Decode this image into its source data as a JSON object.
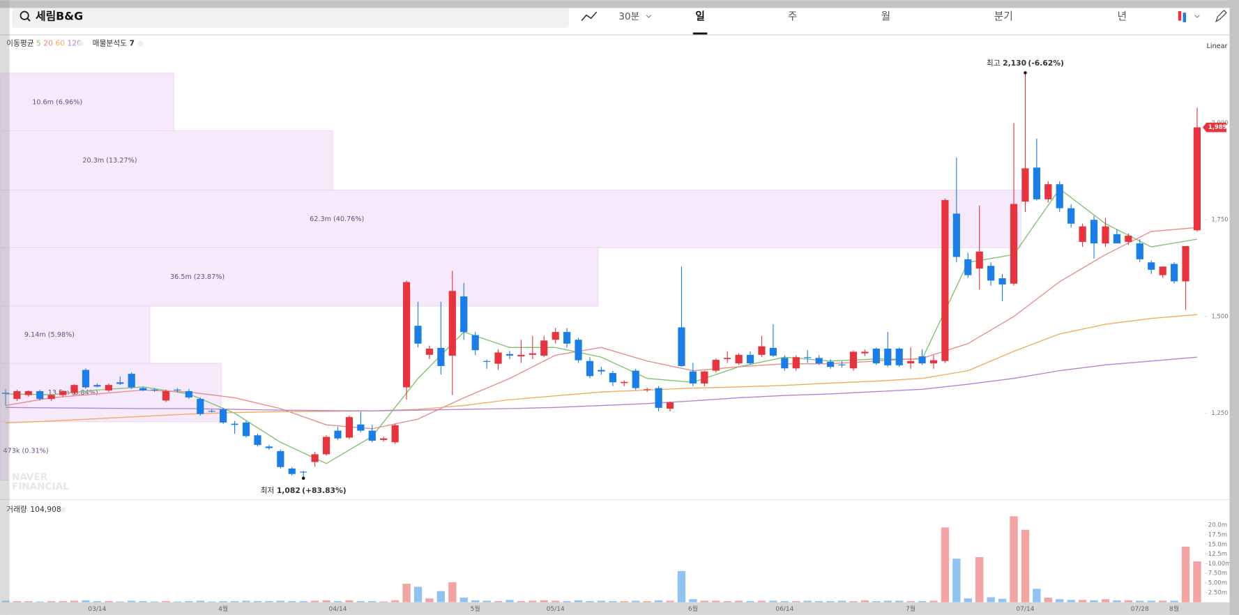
{
  "toolbar": {
    "search": "세림B&G",
    "interval": "30분",
    "tabs": [
      "일",
      "주",
      "월",
      "분기",
      "년"
    ],
    "active_tab": 0
  },
  "chart_data": [
    {
      "type": "candlestick",
      "legend_title": "이동평균",
      "scale_label": "Linear",
      "up_color": "#e8323c",
      "down_color": "#1a7ee8",
      "categories": [
        null,
        null,
        null,
        null,
        null,
        null,
        null,
        null,
        "03/14",
        null,
        null,
        null,
        null,
        null,
        null,
        null,
        null,
        null,
        null,
        "4월",
        null,
        null,
        null,
        null,
        null,
        null,
        null,
        null,
        null,
        "04/14",
        null,
        null,
        null,
        null,
        null,
        null,
        null,
        null,
        null,
        null,
        null,
        "5월",
        null,
        null,
        null,
        null,
        null,
        null,
        "05/14",
        null,
        null,
        null,
        null,
        null,
        null,
        null,
        null,
        null,
        null,
        null,
        "6월",
        null,
        null,
        null,
        null,
        null,
        null,
        null,
        "06/14",
        null,
        null,
        null,
        null,
        null,
        null,
        null,
        null,
        null,
        null,
        "7월",
        null,
        null,
        null,
        null,
        null,
        null,
        null,
        null,
        null,
        "07/14",
        null,
        null,
        null,
        null,
        null,
        null,
        null,
        null,
        null,
        "07/28",
        null,
        null,
        "8월",
        null,
        null
      ],
      "ohlc": [
        [
          1303,
          1312,
          1270,
          1300
        ],
        [
          1287,
          1311,
          1282,
          1307
        ],
        [
          1297,
          1309,
          1293,
          1307
        ],
        [
          1307,
          1311,
          1283,
          1287
        ],
        [
          1287,
          1299,
          1282,
          1297
        ],
        [
          1297,
          1309,
          1292,
          1307
        ],
        [
          1303,
          1325,
          1297,
          1323
        ],
        [
          1362,
          1366,
          1313,
          1317
        ],
        [
          1323,
          1327,
          1317,
          1319
        ],
        [
          1309,
          1327,
          1305,
          1323
        ],
        [
          1330,
          1345,
          1323,
          1326
        ],
        [
          1352,
          1356,
          1313,
          1317
        ],
        [
          1315,
          1319,
          1307,
          1309
        ],
        [
          1311,
          1315,
          1305,
          1309
        ],
        [
          1283,
          1311,
          1279,
          1307
        ],
        [
          1311,
          1315,
          1305,
          1309
        ],
        [
          1307,
          1313,
          1287,
          1291
        ],
        [
          1287,
          1291,
          1244,
          1248
        ],
        [
          1256,
          1260,
          1252,
          1254
        ],
        [
          1260,
          1264,
          1222,
          1226
        ],
        [
          1223,
          1230,
          1197,
          1220
        ],
        [
          1226,
          1230,
          1187,
          1191
        ],
        [
          1193,
          1197,
          1164,
          1168
        ],
        [
          1164,
          1168,
          1156,
          1160
        ],
        [
          1152,
          1156,
          1107,
          1111
        ],
        [
          1107,
          1111,
          1089,
          1093
        ],
        [
          1099,
          1101,
          1082,
          1097
        ],
        [
          1124,
          1150,
          1112,
          1144
        ],
        [
          1144,
          1193,
          1140,
          1189
        ],
        [
          1205,
          1215,
          1181,
          1185
        ],
        [
          1187,
          1244,
          1183,
          1240
        ],
        [
          1221,
          1254,
          1201,
          1205
        ],
        [
          1205,
          1220,
          1175,
          1179
        ],
        [
          1181,
          1189,
          1177,
          1185
        ],
        [
          1175,
          1223,
          1171,
          1219
        ],
        [
          1317,
          1593,
          1285,
          1589
        ],
        [
          1476,
          1538,
          1420,
          1430
        ],
        [
          1401,
          1425,
          1390,
          1417
        ],
        [
          1419,
          1538,
          1350,
          1372
        ],
        [
          1399,
          1618,
          1297,
          1566
        ],
        [
          1552,
          1587,
          1440,
          1460
        ],
        [
          1452,
          1460,
          1400,
          1413
        ],
        [
          1385,
          1389,
          1365,
          1383
        ],
        [
          1378,
          1415,
          1362,
          1407
        ],
        [
          1403,
          1411,
          1390,
          1399
        ],
        [
          1397,
          1440,
          1380,
          1401
        ],
        [
          1401,
          1450,
          1390,
          1405
        ],
        [
          1399,
          1450,
          1395,
          1438
        ],
        [
          1440,
          1470,
          1430,
          1460
        ],
        [
          1460,
          1470,
          1420,
          1430
        ],
        [
          1440,
          1445,
          1380,
          1387
        ],
        [
          1385,
          1395,
          1340,
          1346
        ],
        [
          1362,
          1370,
          1350,
          1358
        ],
        [
          1354,
          1360,
          1320,
          1330
        ],
        [
          1328,
          1335,
          1320,
          1331
        ],
        [
          1360,
          1365,
          1310,
          1315
        ],
        [
          1310,
          1316,
          1305,
          1312
        ],
        [
          1315,
          1320,
          1255,
          1264
        ],
        [
          1262,
          1280,
          1255,
          1278
        ],
        [
          1472,
          1629,
          1370,
          1372
        ],
        [
          1358,
          1380,
          1320,
          1327
        ],
        [
          1327,
          1360,
          1320,
          1358
        ],
        [
          1360,
          1392,
          1355,
          1388
        ],
        [
          1390,
          1410,
          1380,
          1393
        ],
        [
          1379,
          1405,
          1375,
          1401
        ],
        [
          1401,
          1410,
          1375,
          1379
        ],
        [
          1401,
          1450,
          1395,
          1423
        ],
        [
          1419,
          1480,
          1395,
          1399
        ],
        [
          1393,
          1400,
          1360,
          1366
        ],
        [
          1366,
          1400,
          1360,
          1395
        ],
        [
          1395,
          1413,
          1380,
          1393
        ],
        [
          1393,
          1400,
          1375,
          1379
        ],
        [
          1383,
          1390,
          1365,
          1370
        ],
        [
          1376,
          1385,
          1368,
          1374
        ],
        [
          1366,
          1412,
          1360,
          1409
        ],
        [
          1405,
          1415,
          1398,
          1409
        ],
        [
          1417,
          1420,
          1375,
          1379
        ],
        [
          1417,
          1460,
          1370,
          1374
        ],
        [
          1417,
          1420,
          1370,
          1374
        ],
        [
          1379,
          1420,
          1365,
          1385
        ],
        [
          1397,
          1415,
          1375,
          1379
        ],
        [
          1379,
          1400,
          1365,
          1387
        ],
        [
          1385,
          1805,
          1380,
          1801
        ],
        [
          1766,
          1911,
          1640,
          1654
        ],
        [
          1648,
          1665,
          1600,
          1607
        ],
        [
          1624,
          1787,
          1570,
          1668
        ],
        [
          1631,
          1640,
          1580,
          1593
        ],
        [
          1599,
          1610,
          1540,
          1583
        ],
        [
          1585,
          2000,
          1580,
          1791
        ],
        [
          1797,
          2130,
          1770,
          1883
        ],
        [
          1885,
          1960,
          1800,
          1803
        ],
        [
          1803,
          1850,
          1795,
          1842
        ],
        [
          1842,
          1850,
          1770,
          1780
        ],
        [
          1780,
          1790,
          1730,
          1740
        ],
        [
          1693,
          1740,
          1680,
          1733
        ],
        [
          1750,
          1760,
          1650,
          1689
        ],
        [
          1689,
          1755,
          1680,
          1733
        ],
        [
          1713,
          1725,
          1700,
          1689
        ],
        [
          1693,
          1715,
          1685,
          1709
        ],
        [
          1689,
          1700,
          1640,
          1648
        ],
        [
          1640,
          1645,
          1610,
          1621
        ],
        [
          1607,
          1630,
          1600,
          1629
        ],
        [
          1636,
          1640,
          1585,
          1591
        ],
        [
          1591,
          1682,
          1517,
          1682
        ],
        [
          1723,
          2040,
          1720,
          1989
        ]
      ],
      "last_label": "1,989",
      "moving_averages": [
        {
          "name": "5",
          "color": "#7cc46a",
          "x": [
            0,
            4,
            8,
            12,
            16,
            20,
            24,
            28,
            32,
            36,
            40,
            44,
            48,
            52,
            56,
            60,
            64,
            68,
            72,
            76,
            80,
            84,
            88,
            92,
            96,
            100,
            104
          ],
          "values": [
            1300,
            1298,
            1310,
            1318,
            1300,
            1250,
            1175,
            1120,
            1190,
            1340,
            1460,
            1420,
            1420,
            1395,
            1340,
            1330,
            1370,
            1395,
            1385,
            1390,
            1390,
            1640,
            1660,
            1830,
            1740,
            1680,
            1700
          ]
        },
        {
          "name": "20",
          "color": "#e98a8a",
          "x": [
            0,
            4,
            8,
            12,
            16,
            20,
            24,
            28,
            32,
            36,
            40,
            44,
            48,
            52,
            56,
            60,
            64,
            68,
            72,
            76,
            80,
            84,
            88,
            92,
            96,
            100,
            104
          ],
          "values": [
            1270,
            1290,
            1300,
            1310,
            1305,
            1290,
            1262,
            1220,
            1210,
            1235,
            1290,
            1340,
            1400,
            1420,
            1385,
            1360,
            1370,
            1378,
            1378,
            1385,
            1392,
            1430,
            1500,
            1590,
            1660,
            1720,
            1730
          ]
        },
        {
          "name": "60",
          "color": "#f4a95e",
          "x": [
            0,
            4,
            8,
            12,
            16,
            20,
            24,
            28,
            32,
            36,
            40,
            44,
            48,
            52,
            56,
            60,
            64,
            68,
            72,
            76,
            80,
            84,
            88,
            92,
            96,
            100,
            104
          ],
          "values": [
            1225,
            1230,
            1236,
            1242,
            1248,
            1252,
            1254,
            1255,
            1256,
            1260,
            1270,
            1285,
            1295,
            1305,
            1310,
            1315,
            1318,
            1322,
            1328,
            1333,
            1340,
            1360,
            1410,
            1455,
            1480,
            1495,
            1505
          ]
        },
        {
          "name": "120",
          "color": "#b482d8",
          "x": [
            0,
            4,
            8,
            12,
            16,
            20,
            24,
            28,
            32,
            36,
            40,
            44,
            48,
            52,
            56,
            60,
            64,
            68,
            72,
            76,
            80,
            84,
            88,
            92,
            96,
            100,
            104
          ],
          "values": [
            1265,
            1264,
            1263,
            1262,
            1262,
            1260,
            1258,
            1257,
            1256,
            1258,
            1260,
            1262,
            1265,
            1270,
            1275,
            1282,
            1290,
            1296,
            1300,
            1306,
            1312,
            1325,
            1340,
            1360,
            1375,
            1385,
            1395
          ]
        }
      ],
      "profile": {
        "title": "매물분석도",
        "count": 7,
        "color": "#f6e9fc",
        "bands": [
          {
            "low": 1980,
            "high": 2129,
            "volume": 10.6,
            "label": "10.6m (6.96%)"
          },
          {
            "low": 1827,
            "high": 1980,
            "volume": 20.3,
            "label": "20.3m (13.27%)"
          },
          {
            "low": 1678,
            "high": 1827,
            "volume": 62.3,
            "label": "62.3m (40.76%)"
          },
          {
            "low": 1527,
            "high": 1678,
            "volume": 36.5,
            "label": "36.5m (23.87%)"
          },
          {
            "low": 1379,
            "high": 1527,
            "volume": 9.14,
            "label": "9.14m (5.98%)"
          },
          {
            "low": 1228,
            "high": 1379,
            "volume": 13.5,
            "label": "13.5m (8.84%)"
          },
          {
            "low": 1077,
            "high": 1228,
            "volume": 0.473,
            "label": "473k (0.31%)"
          }
        ]
      },
      "annotations": [
        {
          "text": "최고",
          "index": 89,
          "value": 2130,
          "label": "2,130",
          "change": "(-6.62%)"
        },
        {
          "text": "최저",
          "index": 26,
          "value": 1082,
          "label": "1,082",
          "change": "(+83.83%)"
        }
      ],
      "ylim": [
        1027,
        2226
      ],
      "yticks": [
        {
          "value": 1250,
          "label": "1,250"
        },
        {
          "value": 1500,
          "label": "1,500"
        },
        {
          "value": 1750,
          "label": "1,750"
        },
        {
          "value": 2000,
          "label": "2,000"
        }
      ],
      "watermark": [
        "NAVER",
        "FINANCIAL"
      ]
    },
    {
      "type": "bar",
      "title": "거래량",
      "title_value": {
        "value": 104908,
        "label": "104,908"
      },
      "up_color": "#f4a3a3",
      "down_color": "#8fc3f2",
      "values": [
        0.4,
        0.3,
        0.3,
        0.2,
        0.3,
        0.3,
        0.4,
        0.5,
        0.3,
        0.3,
        0.2,
        0.4,
        0.3,
        0.2,
        0.3,
        0.2,
        0.3,
        0.4,
        0.2,
        0.3,
        0.3,
        0.4,
        0.3,
        0.3,
        0.4,
        0.3,
        0.3,
        0.4,
        0.5,
        0.3,
        0.5,
        0.3,
        0.3,
        0.2,
        0.5,
        4.8,
        4.0,
        1.0,
        2.9,
        5.2,
        1.2,
        0.5,
        0.4,
        0.3,
        0.6,
        0.3,
        0.4,
        0.5,
        0.4,
        0.3,
        0.5,
        0.3,
        0.4,
        0.3,
        0.3,
        0.4,
        0.3,
        0.5,
        0.4,
        8.1,
        0.8,
        0.4,
        0.4,
        0.3,
        0.4,
        0.3,
        0.4,
        0.4,
        0.3,
        0.3,
        0.4,
        0.3,
        0.3,
        0.4,
        0.3,
        0.5,
        0.3,
        0.4,
        0.4,
        0.3,
        0.3,
        0.4,
        19.4,
        11.3,
        1.0,
        11.7,
        1.3,
        0.9,
        22.3,
        18.8,
        3.5,
        1.2,
        0.8,
        0.6,
        0.6,
        0.5,
        0.8,
        0.5,
        0.5,
        0.4,
        0.4,
        0.4,
        0.4,
        14.4,
        10.6
      ],
      "ylim": [
        0,
        25
      ],
      "yticks": [
        {
          "value": 2.5,
          "label": "2.50m"
        },
        {
          "value": 5,
          "label": "5.00m"
        },
        {
          "value": 7.5,
          "label": "7.50m"
        },
        {
          "value": 10,
          "label": "10.00m"
        },
        {
          "value": 12.5,
          "label": "12.5m"
        },
        {
          "value": 15,
          "label": "15.0m"
        },
        {
          "value": 17.5,
          "label": "17.5m"
        },
        {
          "value": 20,
          "label": "20.0m"
        }
      ]
    }
  ]
}
